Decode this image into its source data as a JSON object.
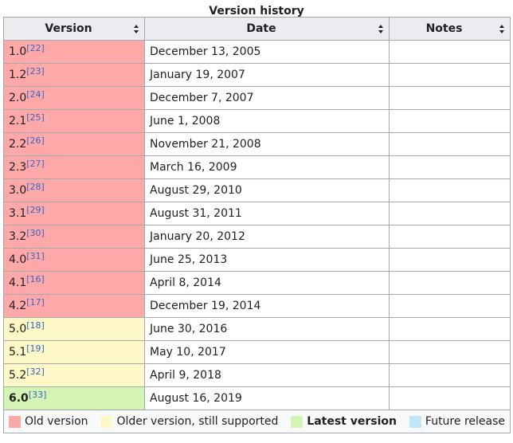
{
  "caption": "Version history",
  "columns": {
    "version": "Version",
    "date": "Date",
    "notes": "Notes"
  },
  "rows": [
    {
      "version": "1.0",
      "ref": "[22]",
      "date": "December 13, 2005",
      "status": "old"
    },
    {
      "version": "1.2",
      "ref": "[23]",
      "date": "January 19, 2007",
      "status": "old"
    },
    {
      "version": "2.0",
      "ref": "[24]",
      "date": "December 7, 2007",
      "status": "old"
    },
    {
      "version": "2.1",
      "ref": "[25]",
      "date": "June 1, 2008",
      "status": "old"
    },
    {
      "version": "2.2",
      "ref": "[26]",
      "date": "November 21, 2008",
      "status": "old"
    },
    {
      "version": "2.3",
      "ref": "[27]",
      "date": "March 16, 2009",
      "status": "old"
    },
    {
      "version": "3.0",
      "ref": "[28]",
      "date": "August 29, 2010",
      "status": "old"
    },
    {
      "version": "3.1",
      "ref": "[29]",
      "date": "August 31, 2011",
      "status": "old"
    },
    {
      "version": "3.2",
      "ref": "[30]",
      "date": "January 20, 2012",
      "status": "old"
    },
    {
      "version": "4.0",
      "ref": "[31]",
      "date": "June 25, 2013",
      "status": "old"
    },
    {
      "version": "4.1",
      "ref": "[16]",
      "date": "April 8, 2014",
      "status": "old"
    },
    {
      "version": "4.2",
      "ref": "[17]",
      "date": "December 19, 2014",
      "status": "old"
    },
    {
      "version": "5.0",
      "ref": "[18]",
      "date": "June 30, 2016",
      "status": "older"
    },
    {
      "version": "5.1",
      "ref": "[19]",
      "date": "May 10, 2017",
      "status": "older"
    },
    {
      "version": "5.2",
      "ref": "[32]",
      "date": "April 9, 2018",
      "status": "older"
    },
    {
      "version": "6.0",
      "ref": "[33]",
      "date": "August 16, 2019",
      "status": "latest"
    }
  ],
  "legend": [
    {
      "label": "Old version",
      "color": "#ffa8a8",
      "bold": false
    },
    {
      "label": "Older version, still supported",
      "color": "#fef8c6",
      "bold": false
    },
    {
      "label": "Latest version",
      "color": "#d4f4b4",
      "bold": true
    },
    {
      "label": "Future release",
      "color": "#c1e6f5",
      "bold": false
    }
  ]
}
